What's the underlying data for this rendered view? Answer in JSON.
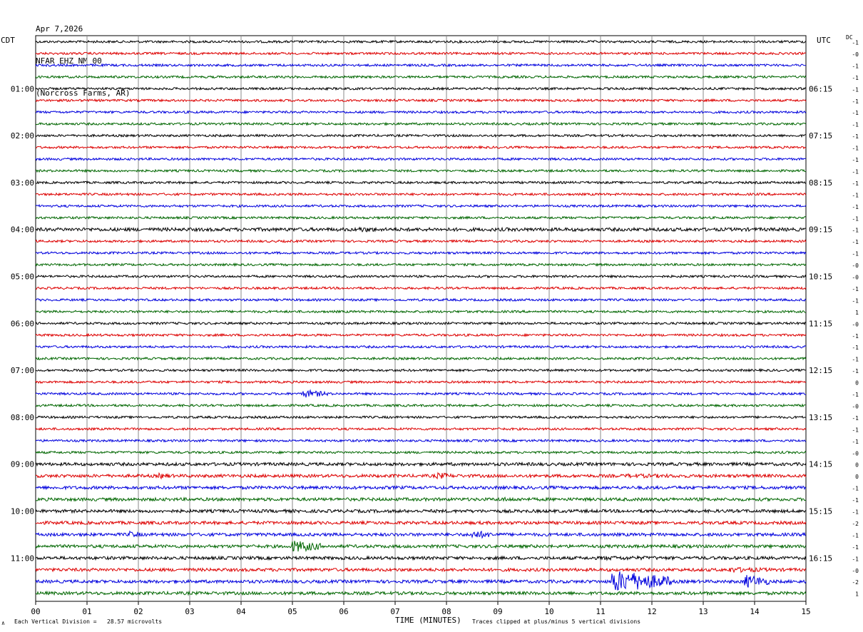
{
  "header": {
    "date": "Apr 7,2026",
    "station": "NFAR EHZ NM 00",
    "location": "(Norcross Farms, AR)"
  },
  "labels": {
    "left_zone": "CDT",
    "right_zone": "UTC",
    "dc_label": "DC",
    "x_title": "TIME (MINUTES)",
    "scale_note": "Each Vertical Division =   28.57 microvolts",
    "clip_note": "Traces clipped at plus/minus 5 vertical divisions",
    "corner_mark": "∧"
  },
  "chart_data": {
    "type": "line",
    "x_ticks": [
      "00",
      "01",
      "02",
      "03",
      "04",
      "05",
      "06",
      "07",
      "08",
      "09",
      "10",
      "11",
      "12",
      "13",
      "14",
      "15"
    ],
    "xlim": [
      0,
      15
    ],
    "trace_count": 48,
    "trace_minutes": 15,
    "colors": [
      "#000000",
      "#dd0000",
      "#0000dd",
      "#006600"
    ],
    "left_hour_labels": [
      "01:00",
      "02:00",
      "03:00",
      "04:00",
      "05:00",
      "06:00",
      "07:00",
      "08:00",
      "09:00",
      "10:00",
      "11:00"
    ],
    "right_hour_labels": [
      "06:15",
      "07:15",
      "08:15",
      "09:15",
      "10:15",
      "11:15",
      "12:15",
      "13:15",
      "14:15",
      "15:15",
      "16:15"
    ],
    "dc_offsets": [
      "-1",
      "-0",
      "-1",
      "-1",
      "-1",
      "-1",
      "-1",
      "-1",
      "-1",
      "-1",
      "-1",
      "-1",
      "-1",
      "-1",
      "-1",
      "-1",
      "-1",
      "-1",
      "-1",
      "-0",
      "-0",
      "-1",
      "-1",
      "1",
      "-0",
      "-1",
      "-1",
      "-1",
      "-1",
      "0",
      "-1",
      "-0",
      "-1",
      "-1",
      "-1",
      "-0",
      "0",
      "0",
      "-1",
      "-1",
      "-1",
      "-2",
      "-1",
      "-1",
      "-1",
      "-0",
      "-2",
      "1"
    ],
    "grid": true
  }
}
